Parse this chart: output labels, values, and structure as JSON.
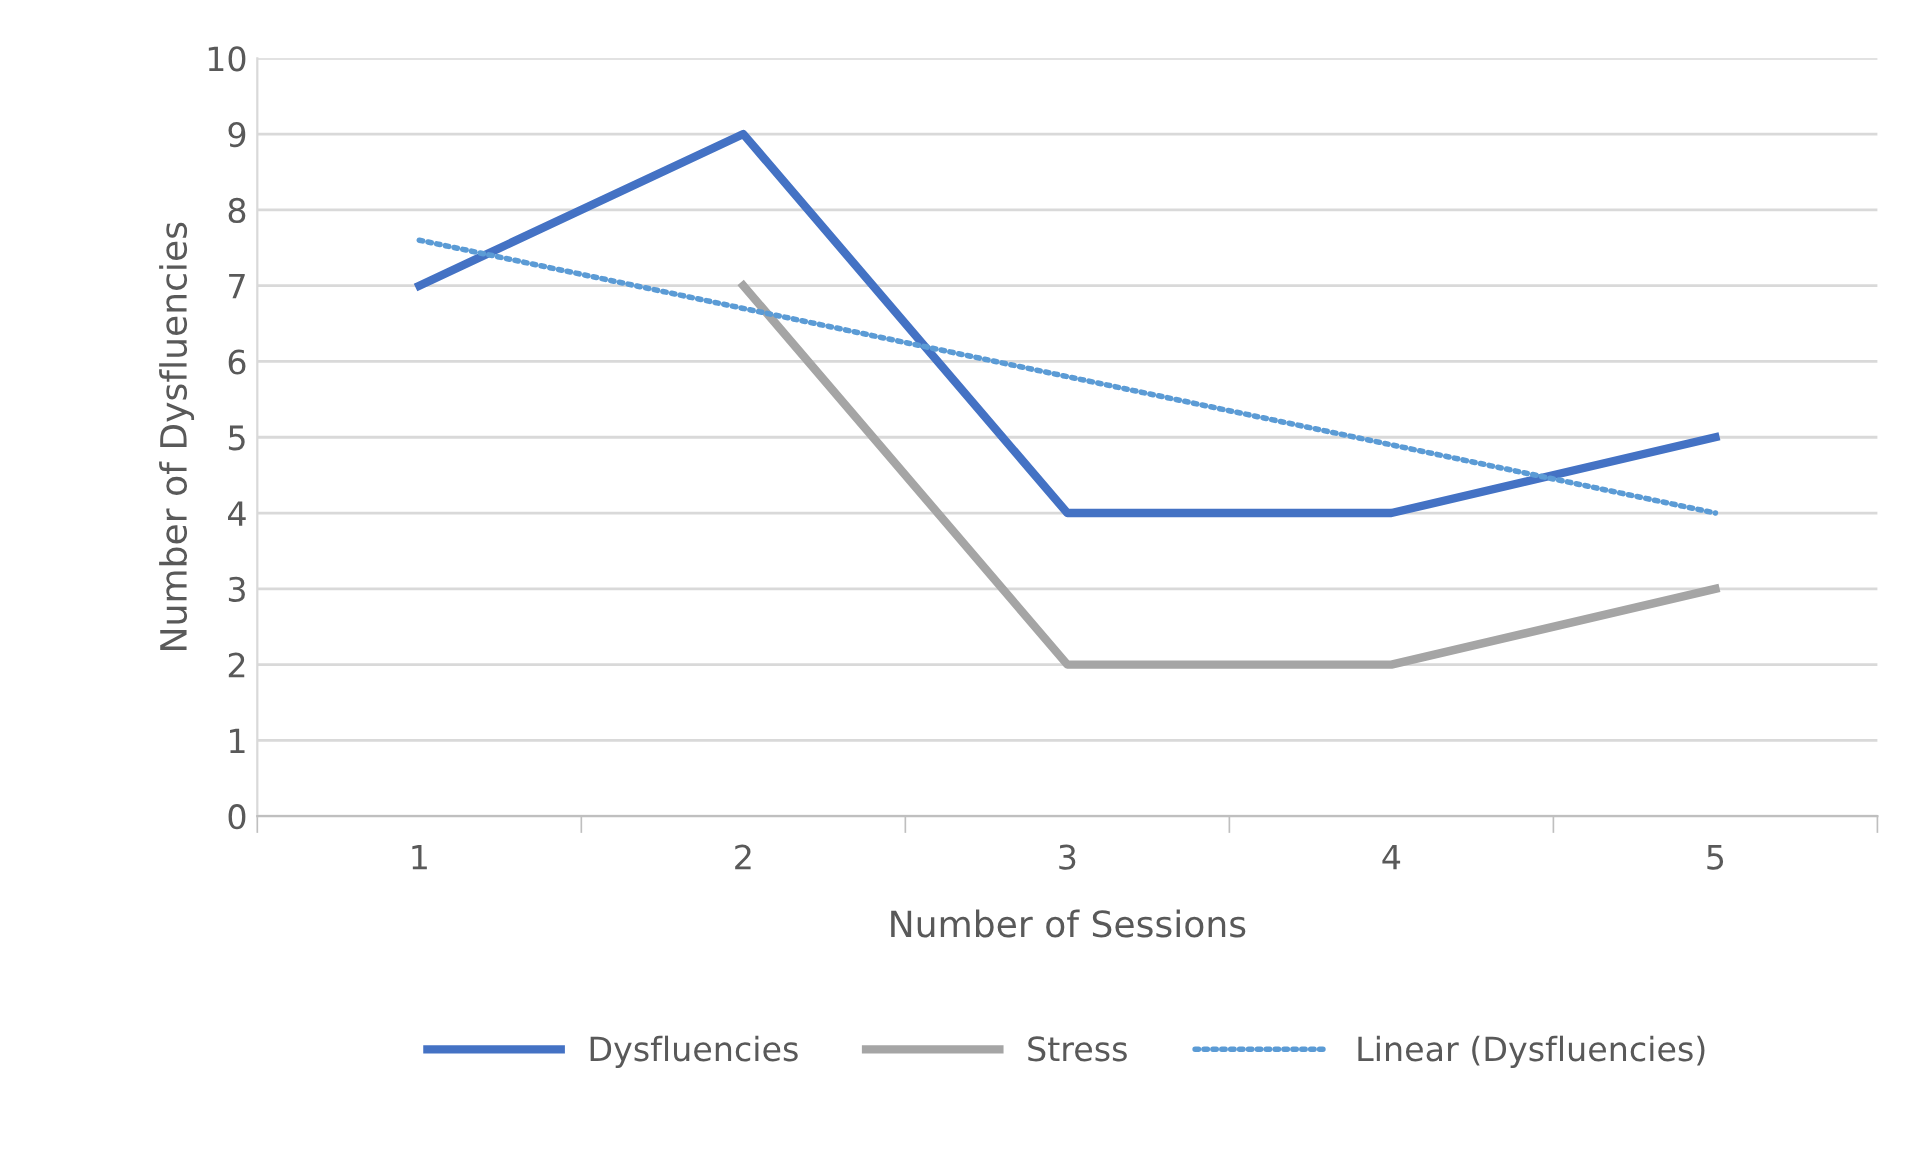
{
  "chart_data": {
    "type": "line",
    "xlabel": "Number of Sessions",
    "ylabel": "Number of Dysfluencies",
    "categories": [
      "1",
      "2",
      "3",
      "4",
      "5"
    ],
    "series": [
      {
        "name": "Dysfluencies",
        "color": "#4472c4",
        "values": [
          7,
          9,
          4,
          4,
          5
        ],
        "line_style": "solid"
      },
      {
        "name": "Stress",
        "color": "#a5a5a5",
        "values": [
          null,
          7,
          2,
          2,
          3
        ],
        "line_style": "solid"
      },
      {
        "name": "Linear (Dysfluencies)",
        "color": "#5b9bd5",
        "values": [
          7.6,
          6.7,
          5.8,
          4.9,
          4.0
        ],
        "line_style": "dotted"
      }
    ],
    "ylim": [
      0,
      10
    ],
    "yticks": [
      0,
      1,
      2,
      3,
      4,
      5,
      6,
      7,
      8,
      9,
      10
    ],
    "grid": "y",
    "legend": "bottom",
    "marker": "none"
  }
}
